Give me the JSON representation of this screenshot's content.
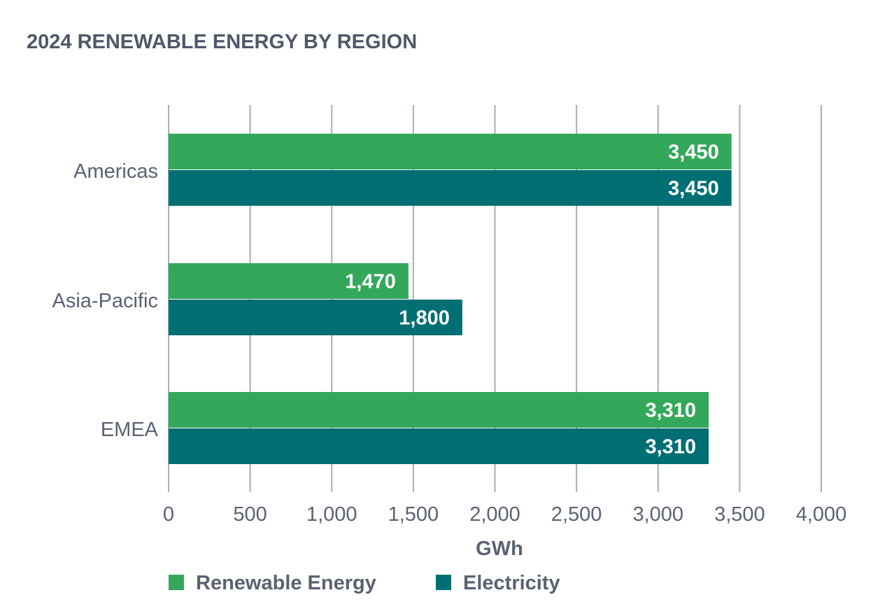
{
  "colors": {
    "renewable": "#34a85a",
    "electricity": "#006f73",
    "grid": "#a7aeb6",
    "text": "#5a6272",
    "title": "#4e5869",
    "bar_label": "#ffffff"
  },
  "chart_data": {
    "type": "bar",
    "orientation": "horizontal",
    "title": "2024 RENEWABLE ENERGY BY REGION",
    "xlabel": "GWh",
    "ylabel": "",
    "categories": [
      "Americas",
      "Asia-Pacific",
      "EMEA"
    ],
    "series": [
      {
        "name": "Renewable Energy",
        "values": [
          3450,
          1470,
          3310
        ],
        "labels": [
          "3,450",
          "1,470",
          "3,310"
        ],
        "color": "#34a85a"
      },
      {
        "name": "Electricity",
        "values": [
          3450,
          1800,
          3310
        ],
        "labels": [
          "3,450",
          "1,800",
          "3,310"
        ],
        "color": "#006f73"
      }
    ],
    "xlim": [
      0,
      4000
    ],
    "x_ticks": [
      0,
      500,
      1000,
      1500,
      2000,
      2500,
      3000,
      3500,
      4000
    ],
    "x_tick_labels": [
      "0",
      "500",
      "1,000",
      "1,500",
      "2,000",
      "2,500",
      "3,000",
      "3,500",
      "4,000"
    ],
    "grid": true,
    "legend_position": "bottom-left"
  }
}
